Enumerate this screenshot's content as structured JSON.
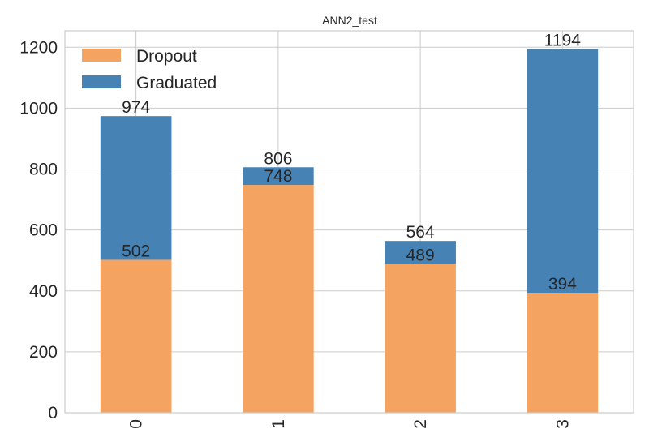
{
  "chart_data": {
    "type": "bar",
    "stacked": true,
    "title": "ANN2_test",
    "xlabel": "",
    "ylabel": "",
    "categories": [
      "0",
      "1",
      "2",
      "3"
    ],
    "series": [
      {
        "name": "Dropout",
        "color": "#f4a460",
        "values": [
          502,
          748,
          489,
          394
        ]
      },
      {
        "name": "Graduated",
        "color": "#4682b4",
        "values": [
          472,
          58,
          75,
          800
        ]
      }
    ],
    "segment_labels": {
      "Dropout": [
        "502",
        "748",
        "489",
        "394"
      ],
      "Graduated": [
        "974",
        "806",
        "564",
        "1194"
      ]
    },
    "totals": [
      974,
      806,
      564,
      1194
    ],
    "ylim": [
      0,
      1254
    ],
    "yticks": [
      0,
      200,
      400,
      600,
      800,
      1000,
      1200
    ],
    "grid": true,
    "legend_position": "top-left",
    "grid_color": "#cccccc",
    "text_color": "#262626"
  }
}
